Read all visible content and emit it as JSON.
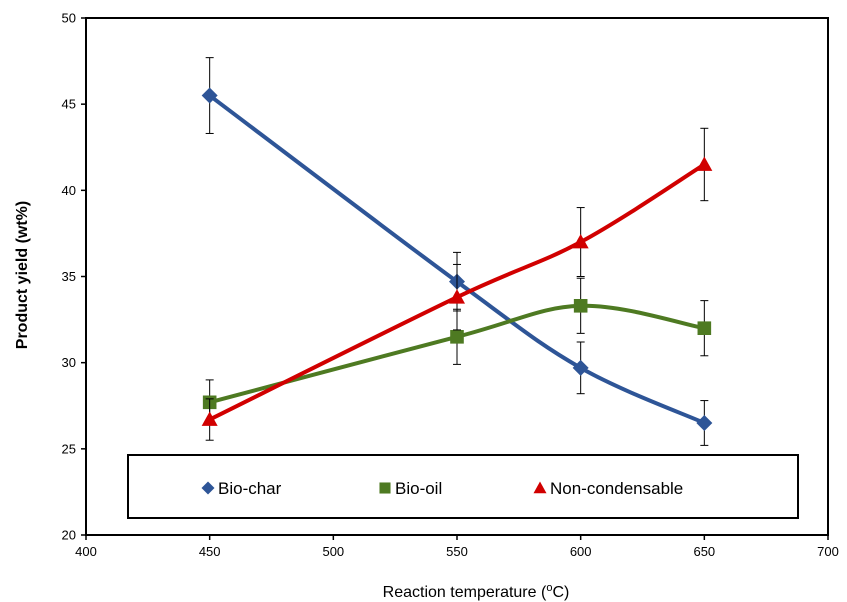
{
  "chart_data": {
    "type": "line",
    "xlabel_prefix": "Reaction temperature (",
    "xlabel_sup": "o",
    "xlabel_suffix": "C)",
    "ylabel": "Product yield (wt%)",
    "xlim": [
      400,
      700
    ],
    "ylim": [
      20,
      50
    ],
    "x_ticks": [
      400,
      450,
      500,
      550,
      600,
      650,
      700
    ],
    "y_ticks": [
      20,
      25,
      30,
      35,
      40,
      45,
      50
    ],
    "x": [
      450,
      550,
      600,
      650
    ],
    "grid": false,
    "legend_position": "bottom, inside plot",
    "series": [
      {
        "name": "Bio-char",
        "values": [
          45.5,
          34.7,
          29.7,
          26.5
        ],
        "errors": [
          2.2,
          1.7,
          1.5,
          1.3
        ],
        "color": "#2E5597",
        "marker": "diamond"
      },
      {
        "name": "Bio-oil",
        "values": [
          27.7,
          31.5,
          33.3,
          32.0
        ],
        "errors": [
          1.3,
          1.6,
          1.6,
          1.6
        ],
        "color": "#4E7A22",
        "marker": "square"
      },
      {
        "name": "Non-condensable",
        "values": [
          26.7,
          33.8,
          37.0,
          41.5
        ],
        "errors": [
          1.2,
          1.9,
          2.0,
          2.1
        ],
        "color": "#D10000",
        "marker": "triangle"
      }
    ]
  }
}
